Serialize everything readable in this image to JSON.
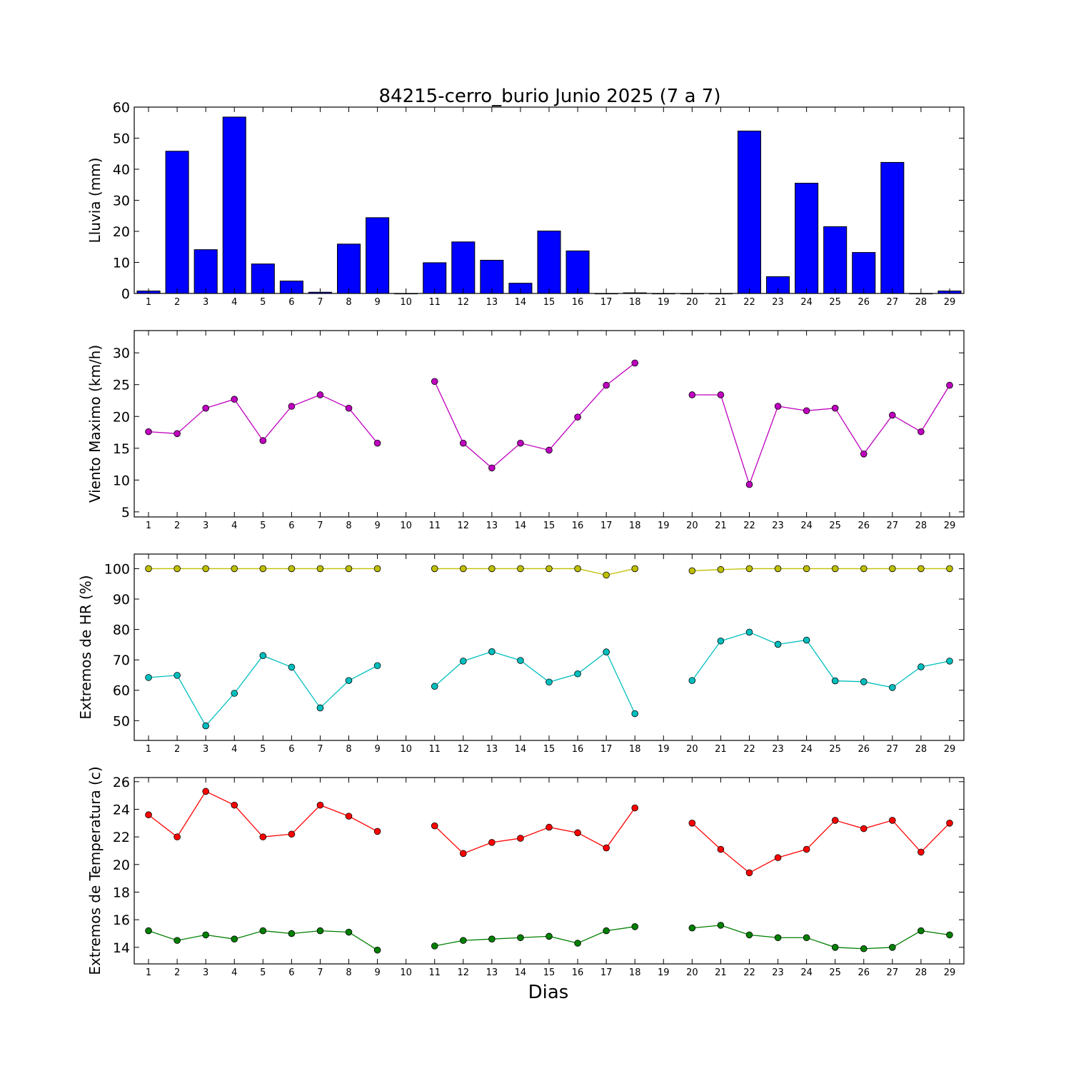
{
  "chart_data": [
    {
      "type": "bar",
      "title": "84215-cerro_burio Junio 2025  (7 a 7)",
      "ylabel": "Lluvia (mm)",
      "xlabel": "",
      "ylim": [
        0,
        60
      ],
      "yticks": [
        0,
        10,
        20,
        30,
        40,
        50,
        60
      ],
      "categories": [
        1,
        2,
        3,
        4,
        5,
        6,
        7,
        8,
        9,
        10,
        11,
        12,
        13,
        14,
        15,
        16,
        17,
        18,
        19,
        20,
        21,
        22,
        23,
        24,
        25,
        26,
        27,
        28,
        29
      ],
      "values": [
        0.8,
        45.8,
        14.1,
        56.8,
        9.5,
        4.0,
        0.4,
        15.9,
        24.4,
        0.0,
        9.9,
        16.6,
        10.7,
        3.3,
        20.1,
        13.7,
        0.0,
        0.2,
        0.0,
        0.0,
        0.0,
        52.3,
        5.4,
        35.5,
        21.5,
        13.2,
        42.2,
        0.0,
        0.8
      ],
      "color": "#0000ff"
    },
    {
      "type": "line",
      "title": "",
      "ylabel": "Viento Maximo (km/h)",
      "xlabel": "",
      "ylim": [
        4.2,
        33.5
      ],
      "yticks": [
        5,
        10,
        15,
        20,
        25,
        30
      ],
      "x": [
        1,
        2,
        3,
        4,
        5,
        6,
        7,
        8,
        9,
        10,
        11,
        12,
        13,
        14,
        15,
        16,
        17,
        18,
        19,
        20,
        21,
        22,
        23,
        24,
        25,
        26,
        27,
        28,
        29
      ],
      "series": [
        {
          "values": [
            17.6,
            17.3,
            21.3,
            22.7,
            16.2,
            21.6,
            23.4,
            21.3,
            15.8,
            null,
            25.5,
            15.8,
            11.9,
            15.8,
            14.7,
            19.9,
            24.9,
            28.4,
            null,
            23.4,
            23.4,
            9.3,
            21.6,
            20.9,
            21.3,
            14.1,
            20.2,
            17.6,
            24.9
          ],
          "color": "#bf00bf"
        }
      ]
    },
    {
      "type": "line",
      "title": "",
      "ylabel": "Extremos de HR (%)",
      "xlabel": "",
      "ylim": [
        43.5,
        104.8
      ],
      "yticks": [
        50,
        60,
        70,
        80,
        90,
        100
      ],
      "x": [
        1,
        2,
        3,
        4,
        5,
        6,
        7,
        8,
        9,
        10,
        11,
        12,
        13,
        14,
        15,
        16,
        17,
        18,
        19,
        20,
        21,
        22,
        23,
        24,
        25,
        26,
        27,
        28,
        29
      ],
      "series": [
        {
          "values": [
            100,
            100,
            100,
            100,
            100,
            100,
            100,
            100,
            100,
            null,
            100,
            100,
            100,
            100,
            100,
            100,
            97.9,
            100,
            null,
            99.3,
            99.7,
            100,
            100,
            100,
            100,
            100,
            100,
            100,
            100
          ],
          "color": "#bfbf00"
        },
        {
          "values": [
            64.2,
            64.9,
            48.3,
            59.0,
            71.4,
            67.6,
            54.2,
            63.2,
            68.1,
            null,
            61.3,
            69.6,
            72.7,
            69.8,
            62.7,
            65.4,
            72.6,
            52.3,
            null,
            63.2,
            76.2,
            79.1,
            75.1,
            76.5,
            63.1,
            62.8,
            60.9,
            67.7,
            69.6
          ],
          "color": "#00bfbf"
        }
      ]
    },
    {
      "type": "line",
      "title": "",
      "ylabel": "Extremos de Temperatura (c)",
      "xlabel": "Dias",
      "ylim": [
        12.8,
        26.3
      ],
      "yticks": [
        14,
        16,
        18,
        20,
        22,
        24,
        26
      ],
      "x": [
        1,
        2,
        3,
        4,
        5,
        6,
        7,
        8,
        9,
        10,
        11,
        12,
        13,
        14,
        15,
        16,
        17,
        18,
        19,
        20,
        21,
        22,
        23,
        24,
        25,
        26,
        27,
        28,
        29
      ],
      "series": [
        {
          "values": [
            23.6,
            22.0,
            25.3,
            24.3,
            22.0,
            22.2,
            24.3,
            23.5,
            22.4,
            null,
            22.8,
            20.8,
            21.6,
            21.9,
            22.7,
            22.3,
            21.2,
            24.1,
            null,
            23.0,
            21.1,
            19.4,
            20.5,
            21.1,
            23.2,
            22.6,
            23.2,
            20.9,
            23.0
          ],
          "color": "#ff0000"
        },
        {
          "values": [
            15.2,
            14.5,
            14.9,
            14.6,
            15.2,
            15.0,
            15.2,
            15.1,
            13.8,
            null,
            14.1,
            14.5,
            14.6,
            14.7,
            14.8,
            14.3,
            15.2,
            15.5,
            null,
            15.4,
            15.6,
            14.9,
            14.7,
            14.7,
            14.0,
            13.9,
            14.0,
            15.2,
            14.9
          ],
          "color": "#007f00"
        }
      ]
    }
  ]
}
